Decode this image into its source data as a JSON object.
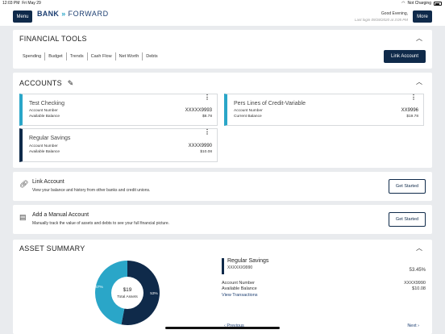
{
  "status_bar": {
    "time": "12:03 PM",
    "date": "Fri May 29",
    "charging": "Not Charging"
  },
  "header": {
    "menu_label": "Menu",
    "more_label": "More",
    "logo_bank": "BANK",
    "logo_forward": "FORWARD",
    "greeting": "Good Evening,",
    "last_login": "Last login 09/28/2020 at 3:05 PM"
  },
  "financial_tools": {
    "title": "FINANCIAL TOOLS",
    "tabs": [
      "Spending",
      "Budget",
      "Trends",
      "Cash Flow",
      "Net Worth",
      "Debts"
    ],
    "link_account_label": "Link Account"
  },
  "accounts": {
    "title": "ACCOUNTS",
    "items": [
      {
        "name": "Test Checking",
        "number_label": "Account Number",
        "number": "XXXXX9993",
        "balance_label": "Available Balance",
        "balance": "$8.78"
      },
      {
        "name": "Pers Lines of Credit-Variable",
        "number_label": "Account Number",
        "number": "XX9996",
        "balance_label": "Current Balance",
        "balance": "$19.78"
      },
      {
        "name": "Regular Savings",
        "number_label": "Account Number",
        "number": "XXXX9990",
        "balance_label": "Available Balance",
        "balance": "$10.08"
      }
    ]
  },
  "link_account": {
    "title": "Link Account",
    "subtitle": "View your balance and history from other banks and credit unions.",
    "button": "Get Started"
  },
  "manual_account": {
    "title": "Add a Manual Account",
    "subtitle": "Manually track the value of assets and debts to see your full financial picture.",
    "button": "Get Started"
  },
  "asset_summary": {
    "title": "ASSET SUMMARY",
    "total_value": "$19",
    "total_label": "Total Assets",
    "slices": [
      {
        "percent": 53,
        "label": "53%",
        "color": "#0f2a4a"
      },
      {
        "percent": 47,
        "label": "47%",
        "color": "#2aa6c8"
      }
    ],
    "detail": {
      "name": "Regular Savings",
      "id": "XXXXXX9990",
      "percent": "53.45%",
      "number_label": "Account Number",
      "number": "XXXX9990",
      "balance_label": "Available Balance",
      "balance": "$10.08",
      "view_link": "View Transactions"
    },
    "previous": "‹  Previous",
    "next": "Next  ›"
  },
  "colors": {
    "navy": "#0f2a4a",
    "teal": "#2aa6c8"
  }
}
